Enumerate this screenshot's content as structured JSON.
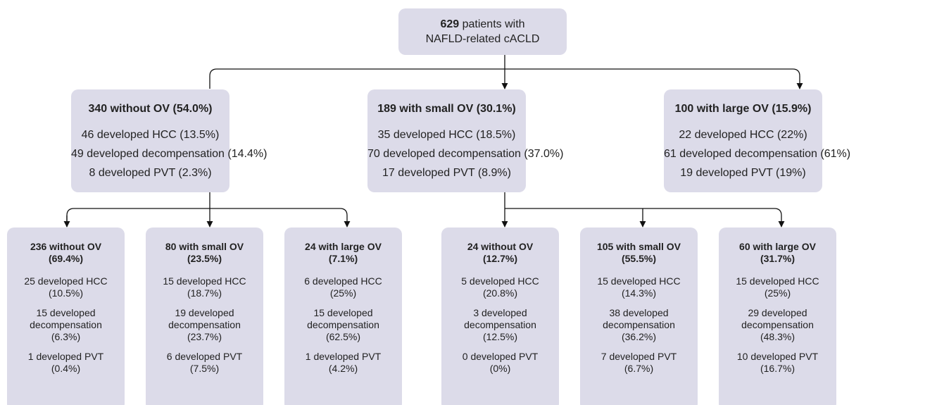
{
  "root": {
    "count": "629",
    "line1": "patients with",
    "line2": "NAFLD-related cACLD"
  },
  "groups": [
    {
      "title": "340 without OV (54.0%)",
      "lines": [
        "46 developed HCC (13.5%)",
        "49 developed decompensation (14.4%)",
        "8 developed PVT (2.3%)"
      ],
      "children": [
        {
          "title": "236 without OV (69.4%)",
          "lines": [
            "25 developed HCC (10.5%)",
            "15 developed decompensation (6.3%)",
            "1 developed PVT (0.4%)"
          ]
        },
        {
          "title": "80 with small OV (23.5%)",
          "lines": [
            "15 developed HCC (18.7%)",
            "19 developed decompensation (23.7%)",
            "6 developed PVT (7.5%)"
          ]
        },
        {
          "title": "24 with large OV (7.1%)",
          "lines": [
            "6 developed HCC (25%)",
            "15 developed decompensation (62.5%)",
            "1 developed PVT (4.2%)"
          ]
        }
      ]
    },
    {
      "title": "189 with small OV (30.1%)",
      "lines": [
        "35 developed HCC (18.5%)",
        "70 developed decompensation (37.0%)",
        "17 developed PVT (8.9%)"
      ],
      "children": [
        {
          "title": "24 without OV (12.7%)",
          "lines": [
            "5 developed HCC (20.8%)",
            "3 developed decompensation (12.5%)",
            "0 developed PVT (0%)"
          ]
        },
        {
          "title": "105 with small OV (55.5%)",
          "lines": [
            "15 developed HCC (14.3%)",
            "38 developed decompensation (36.2%)",
            "7 developed PVT (6.7%)"
          ]
        },
        {
          "title": "60 with large OV (31.7%)",
          "lines": [
            "15 developed HCC (25%)",
            "29 developed decompensation (48.3%)",
            "10 developed PVT (16.7%)"
          ]
        }
      ]
    },
    {
      "title": "100 with large OV (15.9%)",
      "lines": [
        "22 developed HCC (22%)",
        "61 developed decompensation (61%)",
        "19 developed PVT (19%)"
      ],
      "children": []
    }
  ]
}
